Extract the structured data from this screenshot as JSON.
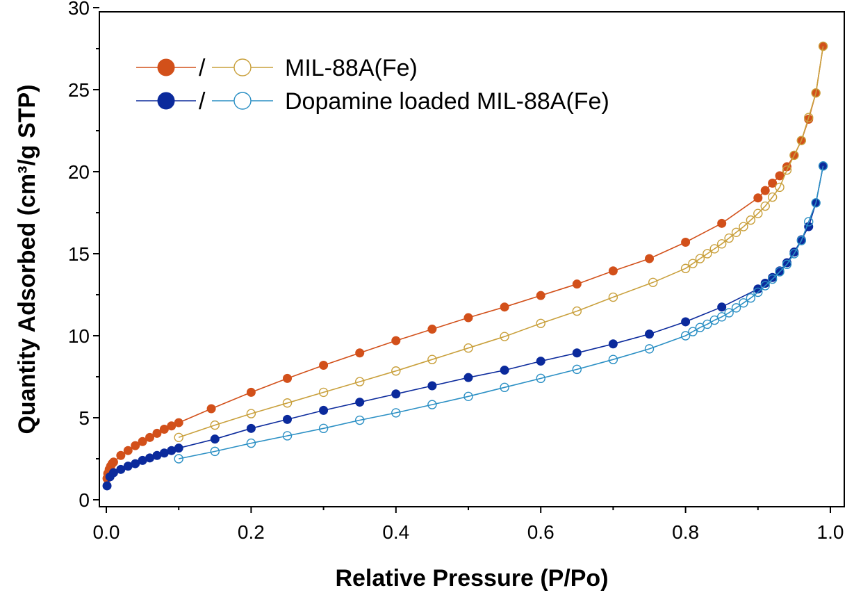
{
  "chart_data": {
    "type": "scatter",
    "xlabel": "Relative Pressure (P/Po)",
    "ylabel": "Quantity Adsorbed (cm³/g STP)",
    "xlim": [
      0,
      1.0
    ],
    "ylim": [
      0,
      30
    ],
    "xticks": [
      0.0,
      0.2,
      0.4,
      0.6,
      0.8,
      1.0
    ],
    "xtick_labels": [
      "0.0",
      "0.2",
      "0.4",
      "0.6",
      "0.8",
      "1.0"
    ],
    "yticks": [
      0,
      5,
      10,
      15,
      20,
      25,
      30
    ],
    "ytick_labels": [
      "0",
      "5",
      "10",
      "15",
      "20",
      "25",
      "30"
    ],
    "grid": false,
    "legend_placement": "top-left",
    "legend": [
      {
        "label": "MIL-88A(Fe)",
        "separator": "/",
        "filled_color": "#d2501a",
        "open_color": "#c9a03c"
      },
      {
        "label": "Dopamine loaded MIL-88A(Fe)",
        "separator": "/",
        "filled_color": "#0b2a9c",
        "open_color": "#2a8fc4"
      }
    ],
    "series": [
      {
        "name": "MIL-88A(Fe)",
        "branch": "adsorption",
        "marker": "filled",
        "color": "#d2501a",
        "x": [
          0.001,
          0.002,
          0.004,
          0.006,
          0.008,
          0.01,
          0.02,
          0.03,
          0.04,
          0.05,
          0.06,
          0.07,
          0.08,
          0.09,
          0.1,
          0.145,
          0.2,
          0.25,
          0.3,
          0.35,
          0.4,
          0.45,
          0.5,
          0.55,
          0.6,
          0.65,
          0.7,
          0.75,
          0.8,
          0.85,
          0.9,
          0.91,
          0.92,
          0.93,
          0.94,
          0.95,
          0.96,
          0.97,
          0.98,
          0.99
        ],
        "y": [
          1.3,
          1.6,
          1.85,
          2.05,
          2.2,
          2.3,
          2.7,
          3.0,
          3.3,
          3.55,
          3.8,
          4.05,
          4.3,
          4.5,
          4.7,
          5.55,
          6.55,
          7.4,
          8.2,
          8.95,
          9.7,
          10.4,
          11.1,
          11.75,
          12.45,
          13.15,
          13.95,
          14.7,
          15.7,
          16.85,
          18.4,
          18.85,
          19.3,
          19.75,
          20.3,
          21.0,
          21.9,
          23.2,
          24.8,
          27.65
        ]
      },
      {
        "name": "MIL-88A(Fe)",
        "branch": "desorption",
        "marker": "open",
        "color": "#c9a03c",
        "x": [
          0.1,
          0.15,
          0.2,
          0.25,
          0.3,
          0.35,
          0.4,
          0.45,
          0.5,
          0.55,
          0.6,
          0.65,
          0.7,
          0.755,
          0.8,
          0.81,
          0.82,
          0.83,
          0.84,
          0.85,
          0.86,
          0.87,
          0.88,
          0.89,
          0.9,
          0.91,
          0.92,
          0.93,
          0.94,
          0.95,
          0.96,
          0.97,
          0.98,
          0.99
        ],
        "y": [
          3.8,
          4.55,
          5.25,
          5.9,
          6.55,
          7.2,
          7.85,
          8.55,
          9.25,
          9.95,
          10.75,
          11.5,
          12.35,
          13.25,
          14.1,
          14.4,
          14.7,
          15.0,
          15.3,
          15.6,
          15.95,
          16.3,
          16.65,
          17.05,
          17.45,
          17.9,
          18.45,
          19.05,
          20.1,
          21.0,
          21.9,
          23.3,
          24.8,
          27.65
        ]
      },
      {
        "name": "Dopamine loaded MIL-88A(Fe)",
        "branch": "adsorption",
        "marker": "filled",
        "color": "#0b2a9c",
        "x": [
          0.001,
          0.005,
          0.01,
          0.02,
          0.03,
          0.04,
          0.05,
          0.06,
          0.07,
          0.08,
          0.09,
          0.1,
          0.15,
          0.2,
          0.25,
          0.3,
          0.35,
          0.4,
          0.45,
          0.5,
          0.55,
          0.6,
          0.65,
          0.7,
          0.75,
          0.8,
          0.85,
          0.9,
          0.91,
          0.92,
          0.93,
          0.94,
          0.95,
          0.96,
          0.97,
          0.98,
          0.99
        ],
        "y": [
          0.85,
          1.4,
          1.65,
          1.85,
          2.05,
          2.2,
          2.4,
          2.55,
          2.7,
          2.85,
          3.0,
          3.15,
          3.7,
          4.35,
          4.9,
          5.45,
          5.95,
          6.45,
          6.95,
          7.45,
          7.9,
          8.45,
          8.95,
          9.5,
          10.1,
          10.85,
          11.75,
          12.85,
          13.2,
          13.55,
          13.95,
          14.45,
          15.1,
          15.85,
          16.65,
          18.1,
          20.35
        ]
      },
      {
        "name": "Dopamine loaded MIL-88A(Fe)",
        "branch": "desorption",
        "marker": "open",
        "color": "#2a8fc4",
        "x": [
          0.1,
          0.15,
          0.2,
          0.25,
          0.3,
          0.35,
          0.4,
          0.45,
          0.5,
          0.55,
          0.6,
          0.65,
          0.7,
          0.75,
          0.8,
          0.81,
          0.82,
          0.83,
          0.84,
          0.85,
          0.86,
          0.87,
          0.88,
          0.89,
          0.9,
          0.91,
          0.92,
          0.93,
          0.94,
          0.95,
          0.96,
          0.97,
          0.98,
          0.99
        ],
        "y": [
          2.5,
          2.95,
          3.45,
          3.9,
          4.35,
          4.85,
          5.3,
          5.8,
          6.3,
          6.85,
          7.4,
          7.95,
          8.55,
          9.2,
          10.0,
          10.25,
          10.5,
          10.7,
          10.95,
          11.15,
          11.4,
          11.7,
          12.0,
          12.3,
          12.65,
          13.05,
          13.45,
          13.9,
          14.35,
          15.0,
          15.8,
          16.95,
          18.1,
          20.35
        ]
      }
    ]
  }
}
